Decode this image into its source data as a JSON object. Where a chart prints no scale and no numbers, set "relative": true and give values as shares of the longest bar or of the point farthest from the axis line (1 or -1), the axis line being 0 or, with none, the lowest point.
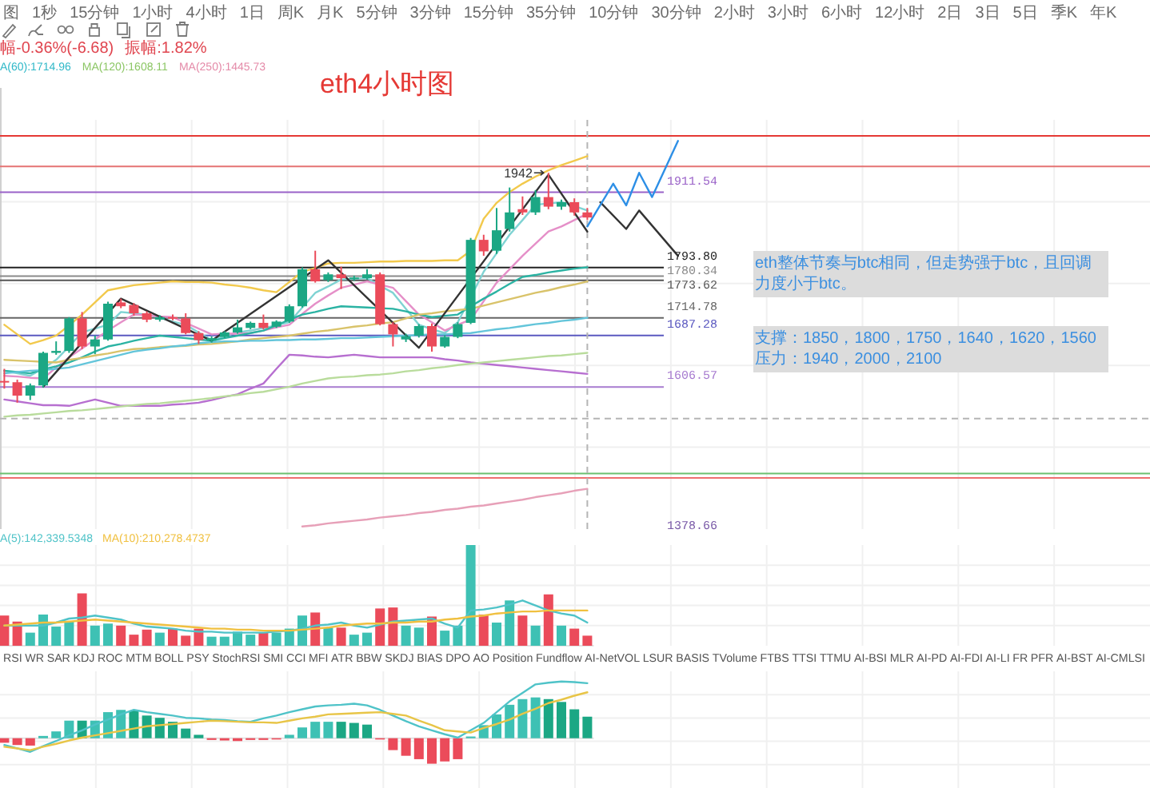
{
  "chart_data": [
    {
      "type": "other",
      "annotations": [
        "图",
        "1秒",
        "15分钟",
        "1小时",
        "4小时",
        "1日",
        "周K",
        "月K",
        "5分钟",
        "3分钟",
        "15分钟",
        "35分钟",
        "10分钟",
        "30分钟",
        "2小时",
        "3小时",
        "6小时",
        "12小时",
        "2日",
        "3日",
        "5日",
        "季K",
        "年K"
      ]
    },
    {
      "type": "candlestick",
      "title": "eth4小时图",
      "categories": [
        null,
        null,
        null,
        null,
        null,
        null,
        null,
        null,
        null,
        null,
        null,
        null,
        null,
        null,
        null,
        null,
        null,
        null,
        null,
        null,
        null,
        null,
        null,
        null,
        null,
        null,
        null,
        null,
        null,
        null,
        null,
        null,
        null,
        null,
        null,
        null,
        null,
        null,
        null,
        null,
        null,
        null,
        null,
        null,
        null,
        null,
        null,
        null,
        null,
        null,
        null,
        null,
        null
      ],
      "ohlc": [
        [
          1616,
          1635,
          1604,
          1614
        ],
        [
          1614,
          1618,
          1582,
          1593
        ],
        [
          1593,
          1612,
          1586,
          1609
        ],
        [
          1609,
          1662,
          1606,
          1660
        ],
        [
          1660,
          1678,
          1657,
          1663
        ],
        [
          1663,
          1716,
          1660,
          1714
        ],
        [
          1714,
          1724,
          1666,
          1670
        ],
        [
          1670,
          1687,
          1658,
          1681
        ],
        [
          1681,
          1740,
          1679,
          1737
        ],
        [
          1739,
          1745,
          1730,
          1733
        ],
        [
          1735,
          1738,
          1718,
          1722
        ],
        [
          1722,
          1725,
          1708,
          1712
        ],
        [
          1712,
          1719,
          1709,
          1716
        ],
        [
          1716,
          1720,
          1711,
          1715
        ],
        [
          1714,
          1722,
          1689,
          1691
        ],
        [
          1691,
          1694,
          1674,
          1680
        ],
        [
          1679,
          1686,
          1676,
          1683
        ],
        [
          1685,
          1694,
          1683,
          1692
        ],
        [
          1692,
          1712,
          1690,
          1700
        ],
        [
          1699,
          1709,
          1697,
          1707
        ],
        [
          1707,
          1720,
          1697,
          1699
        ],
        [
          1701,
          1711,
          1699,
          1709
        ],
        [
          1709,
          1736,
          1707,
          1733
        ],
        [
          1733,
          1794,
          1731,
          1791
        ],
        [
          1791,
          1820,
          1770,
          1772
        ],
        [
          1774,
          1786,
          1771,
          1783
        ],
        [
          1783,
          1795,
          1760,
          1777
        ],
        [
          1776,
          1781,
          1773,
          1778
        ],
        [
          1777,
          1791,
          1775,
          1783
        ],
        [
          1783,
          1786,
          1703,
          1705
        ],
        [
          1705,
          1708,
          1670,
          1689
        ],
        [
          1681,
          1690,
          1677,
          1686
        ],
        [
          1687,
          1705,
          1684,
          1702
        ],
        [
          1702,
          1706,
          1662,
          1670
        ],
        [
          1670,
          1688,
          1668,
          1685
        ],
        [
          1685,
          1708,
          1683,
          1705
        ],
        [
          1707,
          1840,
          1705,
          1837
        ],
        [
          1837,
          1845,
          1812,
          1819
        ],
        [
          1820,
          1887,
          1815,
          1852
        ],
        [
          1854,
          1919,
          1850,
          1880
        ],
        [
          1885,
          1905,
          1876,
          1880
        ],
        [
          1880,
          1915,
          1876,
          1904
        ],
        [
          1904,
          1942,
          1885,
          1889
        ],
        [
          1889,
          1900,
          1884,
          1896
        ],
        [
          1896,
          1902,
          1875,
          1880
        ],
        [
          1880,
          1887,
          1868,
          1872
        ],
        null,
        null,
        null,
        null,
        null,
        null,
        null
      ],
      "colors": [
        "#eb4b5a",
        "#eb4b5a",
        "#1ba784",
        "#1ba784",
        "#1ba784",
        "#1ba784",
        "#eb4b5a",
        "#1ba784",
        "#1ba784",
        "#eb4b5a",
        "#eb4b5a",
        "#eb4b5a",
        "#1ba784",
        "#eb4b5a",
        "#eb4b5a",
        "#eb4b5a",
        "#1ba784",
        "#1ba784",
        "#1ba784",
        "#1ba784",
        "#eb4b5a",
        "#1ba784",
        "#1ba784",
        "#1ba784",
        "#eb4b5a",
        "#1ba784",
        "#eb4b5a",
        "#1ba784",
        "#1ba784",
        "#eb4b5a",
        "#eb4b5a",
        "#1ba784",
        "#1ba784",
        "#eb4b5a",
        "#1ba784",
        "#1ba784",
        "#1ba784",
        "#eb4b5a",
        "#1ba784",
        "#1ba784",
        "#eb4b5a",
        "#1ba784",
        "#eb4b5a",
        "#1ba784",
        "#eb4b5a",
        "#eb4b5a",
        null,
        null,
        null,
        null,
        null,
        null,
        null
      ],
      "ylim": [
        1384,
        2075
      ],
      "grid": true,
      "tick_labels": false,
      "series": [
        {
          "type": "line",
          "color": "#f2c94c",
          "values": [
            1704,
            1689,
            1674,
            1680,
            1687,
            1703,
            1720,
            1739,
            1758,
            1762,
            1766,
            1768,
            1770,
            1772,
            1771,
            1771,
            1770,
            1767,
            1765,
            1762,
            1758,
            1755,
            1771,
            1787,
            1793,
            1800,
            1801,
            1801,
            1802,
            1803,
            1803,
            1804,
            1804,
            1804,
            1805,
            1805,
            1820,
            1870,
            1895,
            1912,
            1925,
            1936,
            1946,
            1954,
            1961,
            1968,
            null,
            null,
            null,
            null,
            null,
            null,
            null
          ]
        },
        {
          "type": "line",
          "color": "#7fd3d3",
          "values": [
            1632,
            1628,
            1624,
            1636,
            1649,
            1670,
            1692,
            1698,
            1704,
            1724,
            1722,
            1720,
            1715,
            1709,
            1704,
            1692,
            1680,
            1686,
            1692,
            1695,
            1699,
            1703,
            1708,
            1731,
            1754,
            1764,
            1775,
            1776,
            1777,
            1765,
            1754,
            1729,
            1704,
            1697,
            1691,
            1708,
            1747,
            1787,
            1816,
            1845,
            1868,
            1892,
            1894,
            1896,
            1890,
            1883,
            null,
            null,
            null,
            null,
            null,
            null,
            null
          ]
        },
        {
          "type": "line",
          "color": "#e58fc8",
          "values": [
            1624,
            1623,
            1621,
            1620,
            1637,
            1653,
            1667,
            1681,
            1695,
            1708,
            1720,
            1719,
            1717,
            1716,
            1707,
            1698,
            1689,
            1690,
            1690,
            1691,
            1695,
            1700,
            1704,
            1721,
            1737,
            1750,
            1762,
            1767,
            1772,
            1767,
            1762,
            1741,
            1720,
            1708,
            1695,
            1704,
            1712,
            1741,
            1770,
            1791,
            1812,
            1831,
            1850,
            1858,
            1868,
            1878,
            null,
            null,
            null,
            null,
            null,
            null,
            null
          ]
        },
        {
          "type": "line",
          "color": "#2bb3a3",
          "values": [
            1632,
            1630,
            1628,
            1634,
            1639,
            1645,
            1653,
            1662,
            1670,
            1674,
            1679,
            1683,
            1687,
            1685,
            1683,
            1681,
            1679,
            1683,
            1687,
            1691,
            1695,
            1703,
            1712,
            1720,
            1724,
            1729,
            1733,
            1732,
            1731,
            1730,
            1729,
            1725,
            1720,
            1716,
            1718,
            1720,
            1733,
            1745,
            1756,
            1768,
            1779,
            1782,
            1786,
            1789,
            1792,
            1794,
            null,
            null,
            null,
            null,
            null,
            null,
            null
          ]
        },
        {
          "type": "line",
          "color": "#d9c36a",
          "values": [
            1649,
            1648,
            1647,
            1646,
            1645,
            1649,
            1652,
            1656,
            1659,
            1663,
            1666,
            1667,
            1669,
            1670,
            1671,
            1673,
            1674,
            1676,
            1678,
            1681,
            1683,
            1685,
            1687,
            1690,
            1693,
            1695,
            1698,
            1701,
            1703,
            1706,
            1708,
            1714,
            1720,
            1722,
            1725,
            1727,
            1729,
            1734,
            1739,
            1744,
            1749,
            1754,
            1758,
            1763,
            1767,
            1772,
            null,
            null,
            null,
            null,
            null,
            null,
            null
          ]
        },
        {
          "type": "line",
          "color": "#63c5da",
          "values": [
            1628,
            1630,
            1632,
            1633,
            1635,
            1637,
            1642,
            1647,
            1652,
            1657,
            1662,
            1665,
            1667,
            1670,
            1672,
            1675,
            1677,
            1678,
            1678,
            1679,
            1679,
            1680,
            1680,
            1681,
            1681,
            1682,
            1683,
            1683,
            1684,
            1685,
            1686,
            1687,
            1688,
            1689,
            1689,
            1690,
            1691,
            1694,
            1697,
            1699,
            1702,
            1705,
            1707,
            1710,
            1712,
            1715,
            null,
            null,
            null,
            null,
            null,
            null,
            null
          ]
        },
        {
          "type": "line",
          "color": "#b76fd0",
          "values": [
            1587,
            1584,
            1581,
            1578,
            1578,
            1577,
            1582,
            1587,
            1582,
            1577,
            1577,
            1577,
            1577,
            1579,
            1580,
            1582,
            1586,
            1591,
            1595,
            1604,
            1612,
            1635,
            1657,
            1656,
            1654,
            1653,
            1655,
            1657,
            1655,
            1653,
            1653,
            1653,
            1653,
            1653,
            1650,
            1648,
            1645,
            1643,
            1641,
            1639,
            1637,
            1635,
            1633,
            1631,
            1629,
            1627,
            null,
            null,
            null,
            null,
            null,
            null,
            null
          ]
        },
        {
          "type": "line",
          "color": "#b9dc9c",
          "values": [
            1560,
            1562,
            1563,
            1565,
            1567,
            1569,
            1570,
            1572,
            1574,
            1576,
            1578,
            1580,
            1581,
            1583,
            1585,
            1587,
            1589,
            1592,
            1594,
            1597,
            1599,
            1603,
            1607,
            1612,
            1616,
            1620,
            1622,
            1623,
            1625,
            1626,
            1628,
            1631,
            1633,
            1636,
            1638,
            1641,
            1643,
            1645,
            1647,
            1649,
            1651,
            1653,
            1655,
            1656,
            1658,
            1660,
            null,
            null,
            null,
            null,
            null,
            null,
            null
          ]
        },
        {
          "type": "line",
          "color": "#e7a0b8",
          "values": [
            null,
            null,
            null,
            null,
            null,
            null,
            null,
            null,
            null,
            null,
            null,
            null,
            null,
            null,
            null,
            null,
            null,
            null,
            null,
            null,
            null,
            null,
            null,
            1388,
            1390,
            1393,
            1395,
            1397,
            1399,
            1402,
            1404,
            1406,
            1409,
            1411,
            1414,
            1416,
            1419,
            1421,
            1424,
            1427,
            1430,
            1434,
            1437,
            1440,
            1444,
            1447,
            null,
            null,
            null,
            null,
            null,
            null,
            null
          ]
        },
        {
          "type": "line",
          "color": "#333333",
          "values": [
            null,
            null,
            null,
            1607,
            null,
            null,
            null,
            null,
            null,
            1745,
            null,
            null,
            null,
            null,
            null,
            null,
            1679,
            null,
            null,
            null,
            null,
            null,
            null,
            null,
            null,
            1805,
            null,
            null,
            null,
            null,
            null,
            null,
            1668,
            null,
            null,
            null,
            null,
            null,
            null,
            null,
            null,
            null,
            1939,
            null,
            null,
            1850,
            null,
            null,
            null,
            null,
            null,
            null,
            null
          ]
        },
        {
          "type": "line",
          "color": "#333333",
          "values": [
            null,
            null,
            null,
            null,
            null,
            null,
            null,
            null,
            null,
            null,
            null,
            null,
            null,
            null,
            null,
            null,
            null,
            null,
            null,
            null,
            null,
            null,
            null,
            null,
            null,
            null,
            null,
            null,
            null,
            null,
            null,
            null,
            null,
            null,
            null,
            null,
            null,
            null,
            null,
            null,
            null,
            null,
            null,
            null,
            null,
            null,
            1896,
            null,
            1854,
            1883,
            null,
            null,
            1812
          ]
        },
        {
          "type": "line",
          "color": "#2d8fe6",
          "values": [
            null,
            null,
            null,
            null,
            null,
            null,
            null,
            null,
            null,
            null,
            null,
            null,
            null,
            null,
            null,
            null,
            null,
            null,
            null,
            null,
            null,
            null,
            null,
            null,
            null,
            null,
            null,
            null,
            null,
            null,
            null,
            null,
            null,
            null,
            null,
            null,
            null,
            null,
            null,
            null,
            null,
            null,
            null,
            null,
            null,
            1858,
            null,
            1925,
            1891,
            1942,
            1904,
            null,
            1992
          ]
        }
      ],
      "ref_lines": [
        {
          "axis": "y",
          "value": 2000,
          "color": "#e53935"
        },
        {
          "axis": "y",
          "value": 1952,
          "color": "#e57373"
        },
        {
          "axis": "y",
          "value": 1911.54,
          "label": "1911.54",
          "color": "#9a62c8"
        },
        {
          "axis": "y",
          "value": 1793.8,
          "label": "1793.80",
          "color": "#222222"
        },
        {
          "axis": "y",
          "value": 1780.34,
          "label": "1780.34",
          "color": "#8a8a8a"
        },
        {
          "axis": "y",
          "value": 1773.62,
          "label": "1773.62",
          "color": "#555555"
        },
        {
          "axis": "y",
          "value": 1714.78,
          "label": "1714.78",
          "color": "#666666"
        },
        {
          "axis": "y",
          "value": 1687.28,
          "label": "1687.28",
          "color": "#5a58c0"
        },
        {
          "axis": "y",
          "value": 1606.57,
          "label": "1606.57",
          "color": "#a77bd0"
        },
        {
          "axis": "y",
          "value": 1557,
          "color": "#b5b5b5",
          "line_style": "dashed"
        },
        {
          "axis": "y",
          "value": 1471,
          "color": "#6cc070"
        },
        {
          "axis": "y",
          "value": 1464,
          "color": "#ef6f6f"
        }
      ],
      "annotations": [
        "幅-0.36%(-6.68)",
        "振幅:1.82%",
        "A(60):1714.96",
        "MA(120):1608.11",
        "MA(250):1445.73",
        {
          "text": "1942",
          "y": 1942
        },
        "eth整体节奏与btc相同，但走势强于btc，且回调力度小于btc。",
        "支撑：1850，1800，1750，1640，1620，1560",
        "压力：1940，2000，2100",
        "1378.66"
      ]
    },
    {
      "type": "bar",
      "relative": true,
      "categories": [
        null,
        null,
        null,
        null,
        null,
        null,
        null,
        null,
        null,
        null,
        null,
        null,
        null,
        null,
        null,
        null,
        null,
        null,
        null,
        null,
        null,
        null,
        null,
        null,
        null,
        null,
        null,
        null,
        null,
        null,
        null,
        null,
        null,
        null,
        null,
        null,
        null,
        null,
        null,
        null,
        null,
        null,
        null,
        null,
        null,
        null,
        null,
        null,
        null,
        null,
        null,
        null,
        null
      ],
      "grid": true,
      "series": [
        {
          "type": "bar",
          "values": [
            0.3,
            0.24,
            0.13,
            0.31,
            0.19,
            0.24,
            0.52,
            0.2,
            0.22,
            0.2,
            0.11,
            0.16,
            0.13,
            0.17,
            0.1,
            0.17,
            0.09,
            0.09,
            0.14,
            0.11,
            0.13,
            0.13,
            0.17,
            0.3,
            0.33,
            0.18,
            0.18,
            0.11,
            0.13,
            0.37,
            0.38,
            0.2,
            0.18,
            0.29,
            0.15,
            0.2,
            1.0,
            0.31,
            0.23,
            0.45,
            0.3,
            0.2,
            0.51,
            0.2,
            0.17,
            0.1,
            null,
            null,
            null,
            null,
            null,
            null,
            null
          ],
          "colors": [
            "#eb4b5a",
            "#eb4b5a",
            "#3ec1b4",
            "#3ec1b4",
            "#3ec1b4",
            "#3ec1b4",
            "#eb4b5a",
            "#3ec1b4",
            "#3ec1b4",
            "#eb4b5a",
            "#eb4b5a",
            "#eb4b5a",
            "#3ec1b4",
            "#eb4b5a",
            "#eb4b5a",
            "#eb4b5a",
            "#3ec1b4",
            "#3ec1b4",
            "#3ec1b4",
            "#3ec1b4",
            "#eb4b5a",
            "#3ec1b4",
            "#3ec1b4",
            "#3ec1b4",
            "#eb4b5a",
            "#3ec1b4",
            "#eb4b5a",
            "#3ec1b4",
            "#3ec1b4",
            "#eb4b5a",
            "#eb4b5a",
            "#3ec1b4",
            "#3ec1b4",
            "#eb4b5a",
            "#3ec1b4",
            "#3ec1b4",
            "#3ec1b4",
            "#eb4b5a",
            "#3ec1b4",
            "#3ec1b4",
            "#eb4b5a",
            "#3ec1b4",
            "#eb4b5a",
            "#3ec1b4",
            "#eb4b5a",
            "#eb4b5a",
            null,
            null,
            null,
            null,
            null,
            null,
            null
          ]
        },
        {
          "type": "line",
          "color": "#4fc3c8",
          "values": [
            0.2,
            0.2,
            0.2,
            0.2,
            0.23,
            0.27,
            0.28,
            0.3,
            0.28,
            0.26,
            0.22,
            0.19,
            0.18,
            0.17,
            0.15,
            0.14,
            0.14,
            0.13,
            0.13,
            0.13,
            0.13,
            0.14,
            0.15,
            0.17,
            0.2,
            0.21,
            0.23,
            0.2,
            0.18,
            0.21,
            0.24,
            0.25,
            0.26,
            0.27,
            0.22,
            0.18,
            0.35,
            0.36,
            0.38,
            0.41,
            0.45,
            0.4,
            0.35,
            0.32,
            0.3,
            0.23,
            null,
            null,
            null,
            null,
            null,
            null,
            null
          ]
        },
        {
          "type": "line",
          "color": "#f0c040",
          "values": [
            0.2,
            0.21,
            0.22,
            0.23,
            0.23,
            0.24,
            0.25,
            0.26,
            0.25,
            0.24,
            0.23,
            0.22,
            0.21,
            0.2,
            0.19,
            0.18,
            0.17,
            0.17,
            0.16,
            0.16,
            0.15,
            0.15,
            0.15,
            0.16,
            0.17,
            0.18,
            0.2,
            0.21,
            0.22,
            0.22,
            0.23,
            0.23,
            0.24,
            0.24,
            0.26,
            0.27,
            0.29,
            0.3,
            0.32,
            0.33,
            0.34,
            0.34,
            0.35,
            0.35,
            0.35,
            0.35,
            null,
            null,
            null,
            null,
            null,
            null,
            null
          ]
        }
      ],
      "annotations": [
        "A(5):142,339.5348",
        "MA(10):210,278.4737"
      ]
    },
    {
      "type": "other",
      "annotations": [
        "RSI",
        "WR",
        "SAR",
        "KDJ",
        "ROC",
        "MTM",
        "BOLL",
        "PSY",
        "StochRSI",
        "SMI",
        "CCI",
        "MFI",
        "ATR",
        "BBW",
        "SKDJ",
        "BIAS",
        "DPO",
        "AO",
        "Position",
        "Fundflow",
        "AI-NetVOL",
        "LSUR",
        "BASIS",
        "TVolume",
        "FTBS",
        "TTSI",
        "TTMU",
        "AI-BSI",
        "MLR",
        "AI-PD",
        "AI-FDI",
        "AI-LI",
        "FR",
        "PFR",
        "AI-BST",
        "AI-CMLSI"
      ]
    },
    {
      "type": "bar",
      "relative": true,
      "categories": [
        null,
        null,
        null,
        null,
        null,
        null,
        null,
        null,
        null,
        null,
        null,
        null,
        null,
        null,
        null,
        null,
        null,
        null,
        null,
        null,
        null,
        null,
        null,
        null,
        null,
        null,
        null,
        null,
        null,
        null,
        null,
        null,
        null,
        null,
        null,
        null,
        null,
        null,
        null,
        null,
        null,
        null,
        null,
        null,
        null,
        null,
        null,
        null,
        null,
        null,
        null,
        null,
        null
      ],
      "grid": true,
      "series": [
        {
          "type": "bar",
          "values": [
            -0.08,
            -0.12,
            -0.13,
            0.04,
            0.12,
            0.31,
            0.31,
            0.31,
            0.46,
            0.5,
            0.49,
            0.4,
            0.36,
            0.29,
            0.17,
            0.06,
            -0.03,
            -0.04,
            -0.05,
            -0.03,
            -0.03,
            -0.01,
            0.06,
            0.19,
            0.29,
            0.29,
            0.29,
            0.27,
            0.24,
            -0.01,
            -0.21,
            -0.31,
            -0.37,
            -0.45,
            -0.41,
            -0.37,
            0.03,
            0.23,
            0.42,
            0.59,
            0.69,
            0.72,
            0.69,
            0.64,
            0.51,
            0.38,
            null,
            null,
            null,
            null,
            null,
            null,
            null
          ],
          "colors": [
            "#eb4b5a",
            "#eb4b5a",
            "#eb4b5a",
            "#3ec1b4",
            "#3ec1b4",
            "#3ec1b4",
            "#1ba784",
            "#3ec1b4",
            "#3ec1b4",
            "#3ec1b4",
            "#1ba784",
            "#1ba784",
            "#1ba784",
            "#1ba784",
            "#1ba784",
            "#1ba784",
            "#eb4b5a",
            "#eb4b5a",
            "#eb4b5a",
            "#eb4b5a",
            "#eb4b5a",
            "#eb4b5a",
            "#3ec1b4",
            "#3ec1b4",
            "#3ec1b4",
            "#3ec1b4",
            "#1ba784",
            "#1ba784",
            "#1ba784",
            "#eb4b5a",
            "#eb4b5a",
            "#eb4b5a",
            "#eb4b5a",
            "#eb4b5a",
            "#eb4b5a",
            "#eb4b5a",
            "#3ec1b4",
            "#3ec1b4",
            "#3ec1b4",
            "#3ec1b4",
            "#3ec1b4",
            "#3ec1b4",
            "#1ba784",
            "#1ba784",
            "#1ba784",
            "#1ba784",
            null,
            null,
            null,
            null,
            null,
            null,
            null
          ]
        },
        {
          "type": "line",
          "color": "#4fc3c8",
          "values": [
            -0.12,
            -0.18,
            -0.24,
            -0.14,
            -0.05,
            0.05,
            0.14,
            0.24,
            0.33,
            0.42,
            0.5,
            0.46,
            0.43,
            0.4,
            0.36,
            0.35,
            0.33,
            0.32,
            0.3,
            0.29,
            0.35,
            0.4,
            0.46,
            0.51,
            0.56,
            0.58,
            0.59,
            0.61,
            0.58,
            0.5,
            0.4,
            0.3,
            0.21,
            0.14,
            0.07,
            0.01,
            0.14,
            0.27,
            0.46,
            0.65,
            0.8,
            0.95,
            0.98,
            1.0,
            0.99,
            0.97,
            null,
            null,
            null,
            null,
            null,
            null,
            null
          ]
        },
        {
          "type": "line",
          "color": "#e8c547",
          "values": [
            -0.15,
            -0.18,
            -0.21,
            -0.15,
            -0.1,
            -0.04,
            0.01,
            0.05,
            0.09,
            0.13,
            0.17,
            0.21,
            0.23,
            0.25,
            0.27,
            0.29,
            0.31,
            0.3,
            0.29,
            0.28,
            0.28,
            0.27,
            0.31,
            0.35,
            0.38,
            0.42,
            0.43,
            0.44,
            0.45,
            0.46,
            0.43,
            0.4,
            0.31,
            0.23,
            0.14,
            0.12,
            0.1,
            0.18,
            0.25,
            0.33,
            0.43,
            0.52,
            0.62,
            0.68,
            0.75,
            0.81,
            null,
            null,
            null,
            null,
            null,
            null,
            null
          ]
        }
      ]
    }
  ]
}
